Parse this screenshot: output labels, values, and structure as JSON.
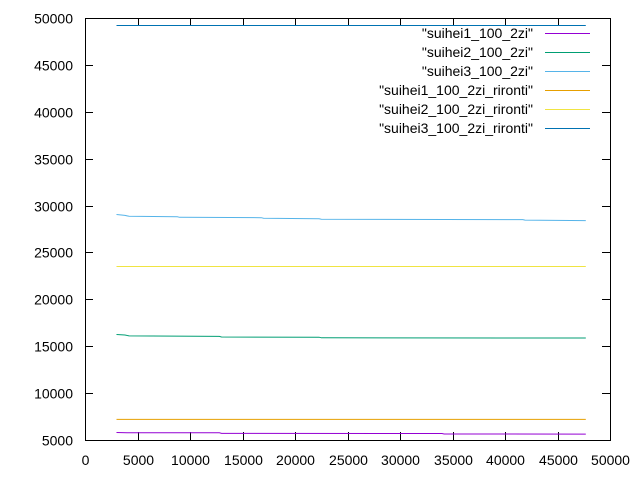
{
  "chart_data": {
    "type": "line",
    "title": "",
    "xlabel": "",
    "ylabel": "",
    "xlim": [
      0,
      50000
    ],
    "ylim": [
      5000,
      50000
    ],
    "xticks": [
      0,
      5000,
      10000,
      15000,
      20000,
      25000,
      30000,
      35000,
      40000,
      45000,
      50000
    ],
    "yticks": [
      5000,
      10000,
      15000,
      20000,
      25000,
      30000,
      35000,
      40000,
      45000,
      50000
    ],
    "xtick_labels": [
      "0",
      "5000",
      "10000",
      "15000",
      "20000",
      "25000",
      "30000",
      "35000",
      "40000",
      "45000",
      "50000"
    ],
    "ytick_labels": [
      "5000",
      "10000",
      "15000",
      "20000",
      "25000",
      "30000",
      "35000",
      "40000",
      "45000",
      "50000"
    ],
    "grid": false,
    "legend_position": "top-right",
    "series": [
      {
        "name": "\"suihei1_100_2zi\"",
        "color": "#9400d3",
        "x": [
          3000,
          4000,
          12800,
          13000,
          34000,
          34200,
          47700
        ],
        "y": [
          5800,
          5780,
          5770,
          5700,
          5690,
          5640,
          5630
        ]
      },
      {
        "name": "\"suihei2_100_2zi\"",
        "color": "#009e73",
        "x": [
          3000,
          3800,
          4200,
          12800,
          13000,
          22300,
          22500,
          47700
        ],
        "y": [
          16250,
          16200,
          16100,
          16050,
          15980,
          15960,
          15900,
          15880
        ]
      },
      {
        "name": "\"suihei3_100_2zi\"",
        "color": "#56b4e9",
        "x": [
          3000,
          3800,
          4200,
          8800,
          9000,
          16800,
          17000,
          22300,
          22500,
          41700,
          41900,
          47700
        ],
        "y": [
          29050,
          28950,
          28850,
          28800,
          28750,
          28700,
          28650,
          28600,
          28550,
          28500,
          28450,
          28400
        ]
      },
      {
        "name": "\"suihei1_100_2zi_rironti\"",
        "color": "#e69f00",
        "x": [
          3000,
          47700
        ],
        "y": [
          7200,
          7200
        ]
      },
      {
        "name": "\"suihei2_100_2zi_rironti\"",
        "color": "#f0e442",
        "x": [
          3000,
          47700
        ],
        "y": [
          23500,
          23500
        ]
      },
      {
        "name": "\"suihei3_100_2zi_rironti\"",
        "color": "#0072b2",
        "x": [
          3000,
          47700
        ],
        "y": [
          49200,
          49200
        ]
      }
    ]
  }
}
